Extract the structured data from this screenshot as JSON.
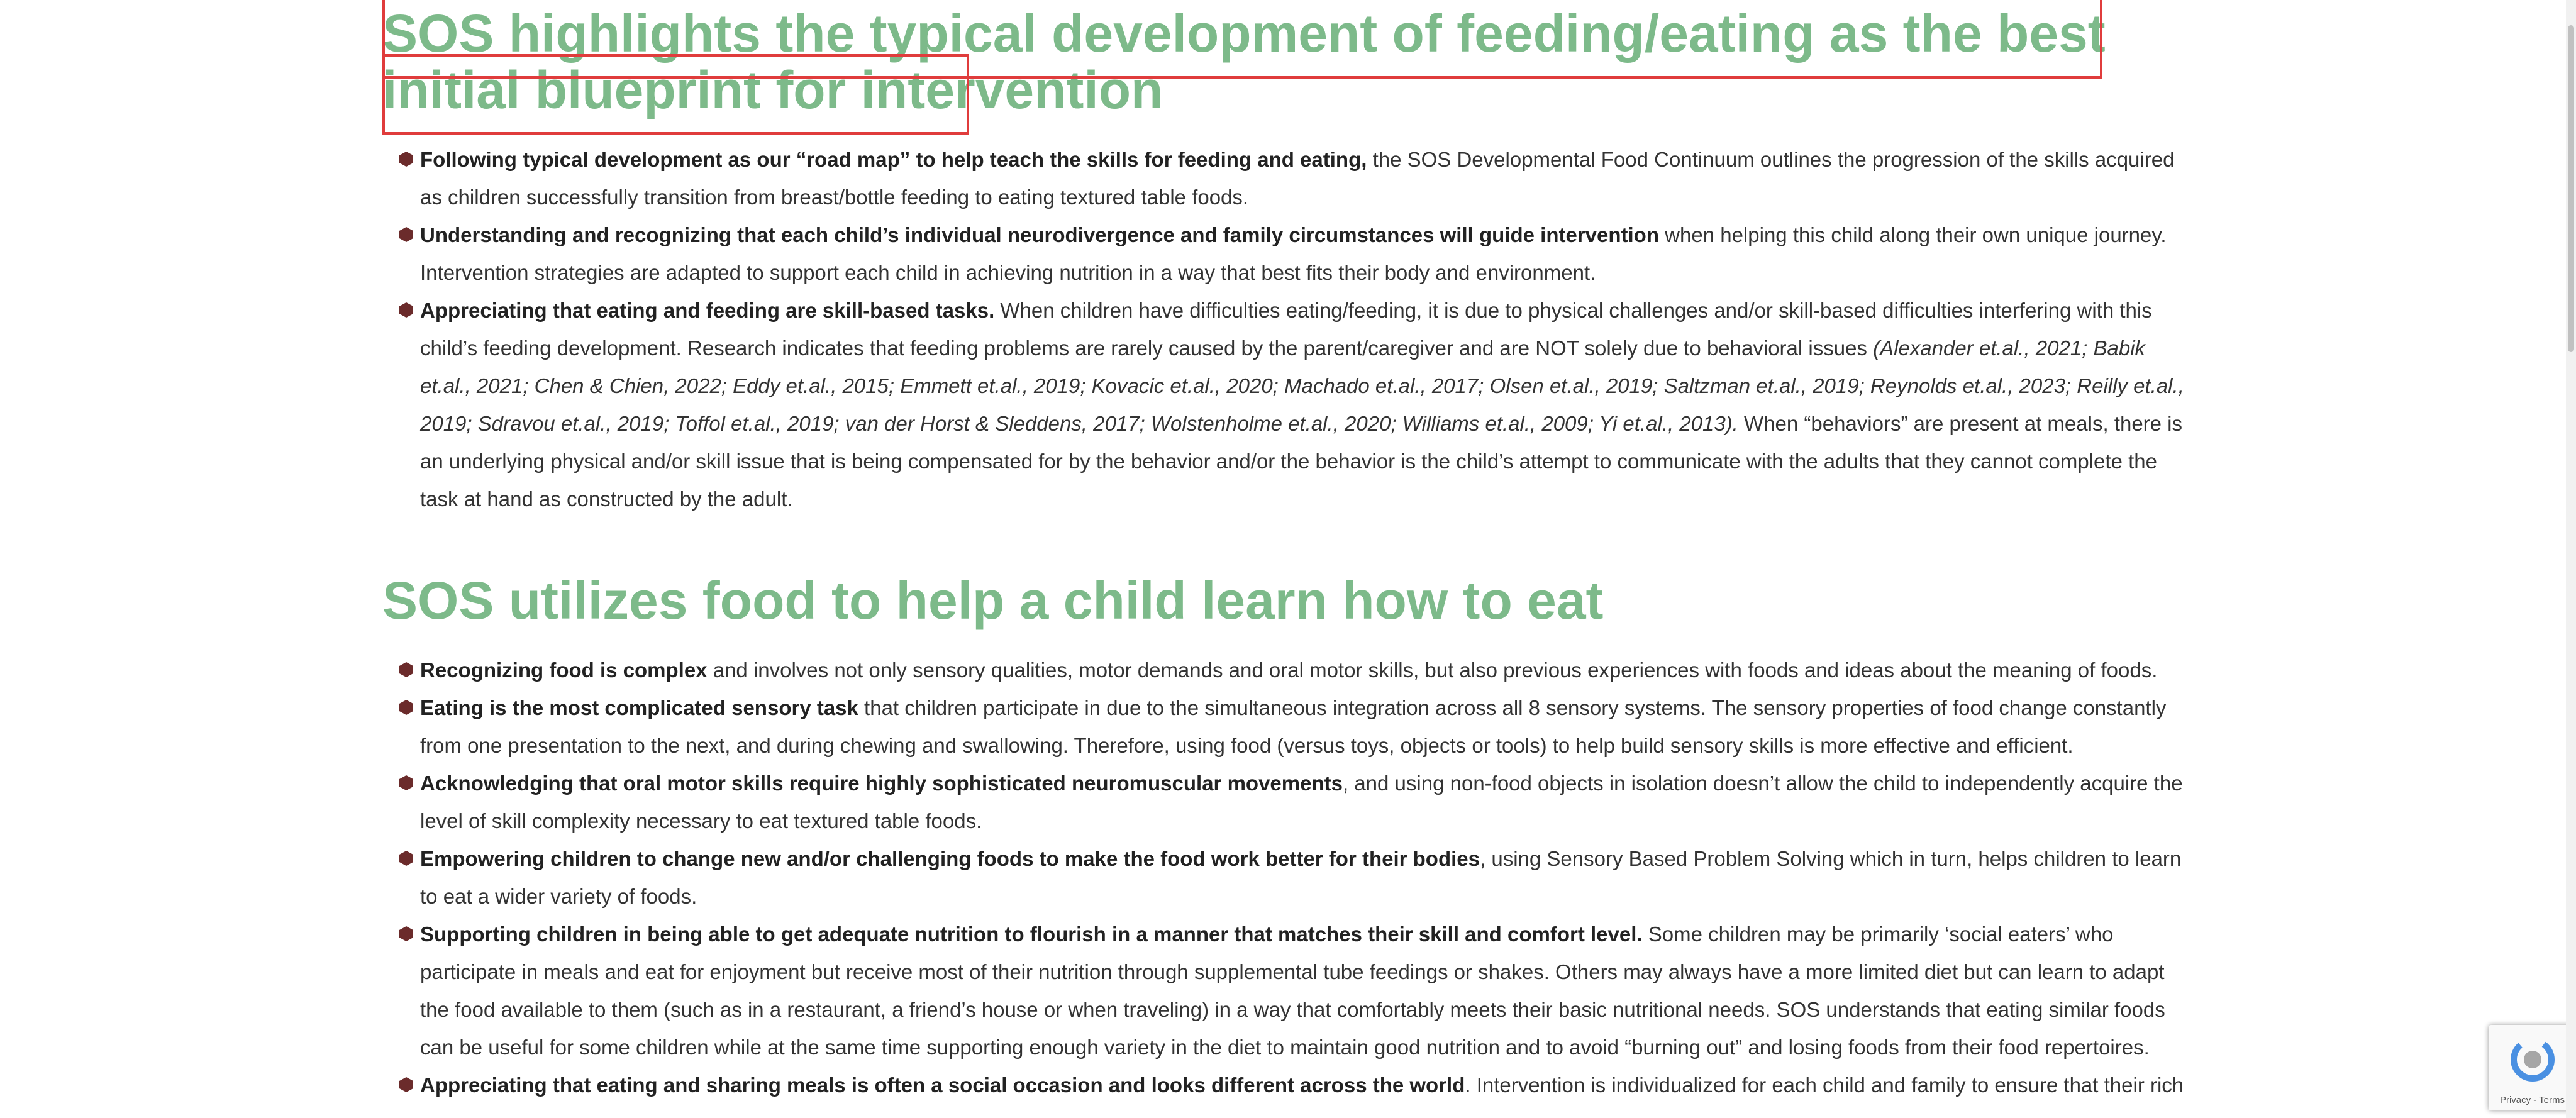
{
  "sections": [
    {
      "heading": "SOS highlights the typical development of feeding/eating as the best initial blueprint for intervention",
      "items": [
        {
          "bold": "Following typical development as our “road map” to help teach the skills for feeding and eating,",
          "text": " the SOS Developmental Food Continuum outlines the progression of the skills acquired as children successfully transition from breast/bottle feeding to eating textured table foods."
        },
        {
          "bold": "Understanding and recognizing that each child’s individual neurodivergence and family circumstances will guide intervention",
          "text": " when helping this child along their own unique journey. Intervention strategies are adapted to support each child in achieving nutrition in a way that best fits their body and environment."
        },
        {
          "bold": "Appreciating that eating and feeding are skill-based tasks.",
          "text": " When children have difficulties eating/feeding, it is due to physical challenges and/or skill-based difficulties interfering with this child’s feeding development. Research indicates that feeding problems are rarely caused by the parent/caregiver and are NOT solely due to behavioral issues ",
          "italic": "(Alexander et.al., 2021; Babik et.al., 2021; Chen & Chien, 2022; Eddy et.al., 2015; Emmett et.al., 2019; Kovacic et.al., 2020; Machado et.al., 2017; Olsen et.al., 2019; Saltzman et.al., 2019; Reynolds et.al., 2023; Reilly et.al., 2019; Sdravou et.al., 2019; Toffol et.al., 2019; van der Horst & Sleddens, 2017; Wolstenholme et.al., 2020; Williams et.al., 2009; Yi et.al., 2013).",
          "text_after": " When “behaviors” are present at meals, there is an underlying physical and/or skill issue that is being compensated for by the behavior and/or the behavior is the child’s attempt to communicate with the adults that they cannot complete the task at hand as constructed by the adult."
        }
      ]
    },
    {
      "heading": "SOS utilizes food to help a child learn how to eat",
      "items": [
        {
          "bold": "Recognizing food is complex",
          "text": " and involves not only sensory qualities, motor demands and oral motor skills, but also previous experiences with foods and ideas about the meaning of foods."
        },
        {
          "bold": "Eating is the most complicated sensory task",
          "text": " that children participate in due to the simultaneous integration across all 8 sensory systems. The sensory properties of food change constantly from one presentation to the next, and during chewing and swallowing. Therefore, using food (versus toys, objects or tools) to help build sensory skills is more effective and efficient."
        },
        {
          "bold": "Acknowledging that oral motor skills require highly sophisticated neuromuscular movements",
          "text": ", and using non-food objects in isolation doesn’t allow the child to independently acquire the level of skill complexity necessary to eat textured table foods."
        },
        {
          "bold": "Empowering children to change new and/or challenging foods to make the food work better for their bodies",
          "text": ", using Sensory Based Problem Solving which in turn, helps children to learn to eat a wider variety of foods."
        },
        {
          "bold": "Supporting children in being able to get adequate nutrition to flourish in a manner that matches their skill and comfort level.",
          "text": " Some children may be primarily ‘social eaters’ who participate in meals and eat for enjoyment but receive most of their nutrition through supplemental tube feedings or shakes. Others may always have a more limited diet but can learn to adapt the food available to them (such as in a restaurant, a friend’s house or when traveling) in a way that comfortably meets their basic nutritional needs. SOS understands that eating similar foods can be useful for some children while at the same time supporting enough variety in the diet to maintain good nutrition and to avoid “burning out” and losing foods from their food repertoires."
        },
        {
          "bold": "Appreciating that eating and sharing meals is often a social occasion and looks different across the world",
          "text": ". Intervention is individualized for each child and family to ensure that their rich"
        }
      ]
    }
  ],
  "recaptcha": {
    "links": "Privacy - Terms"
  }
}
